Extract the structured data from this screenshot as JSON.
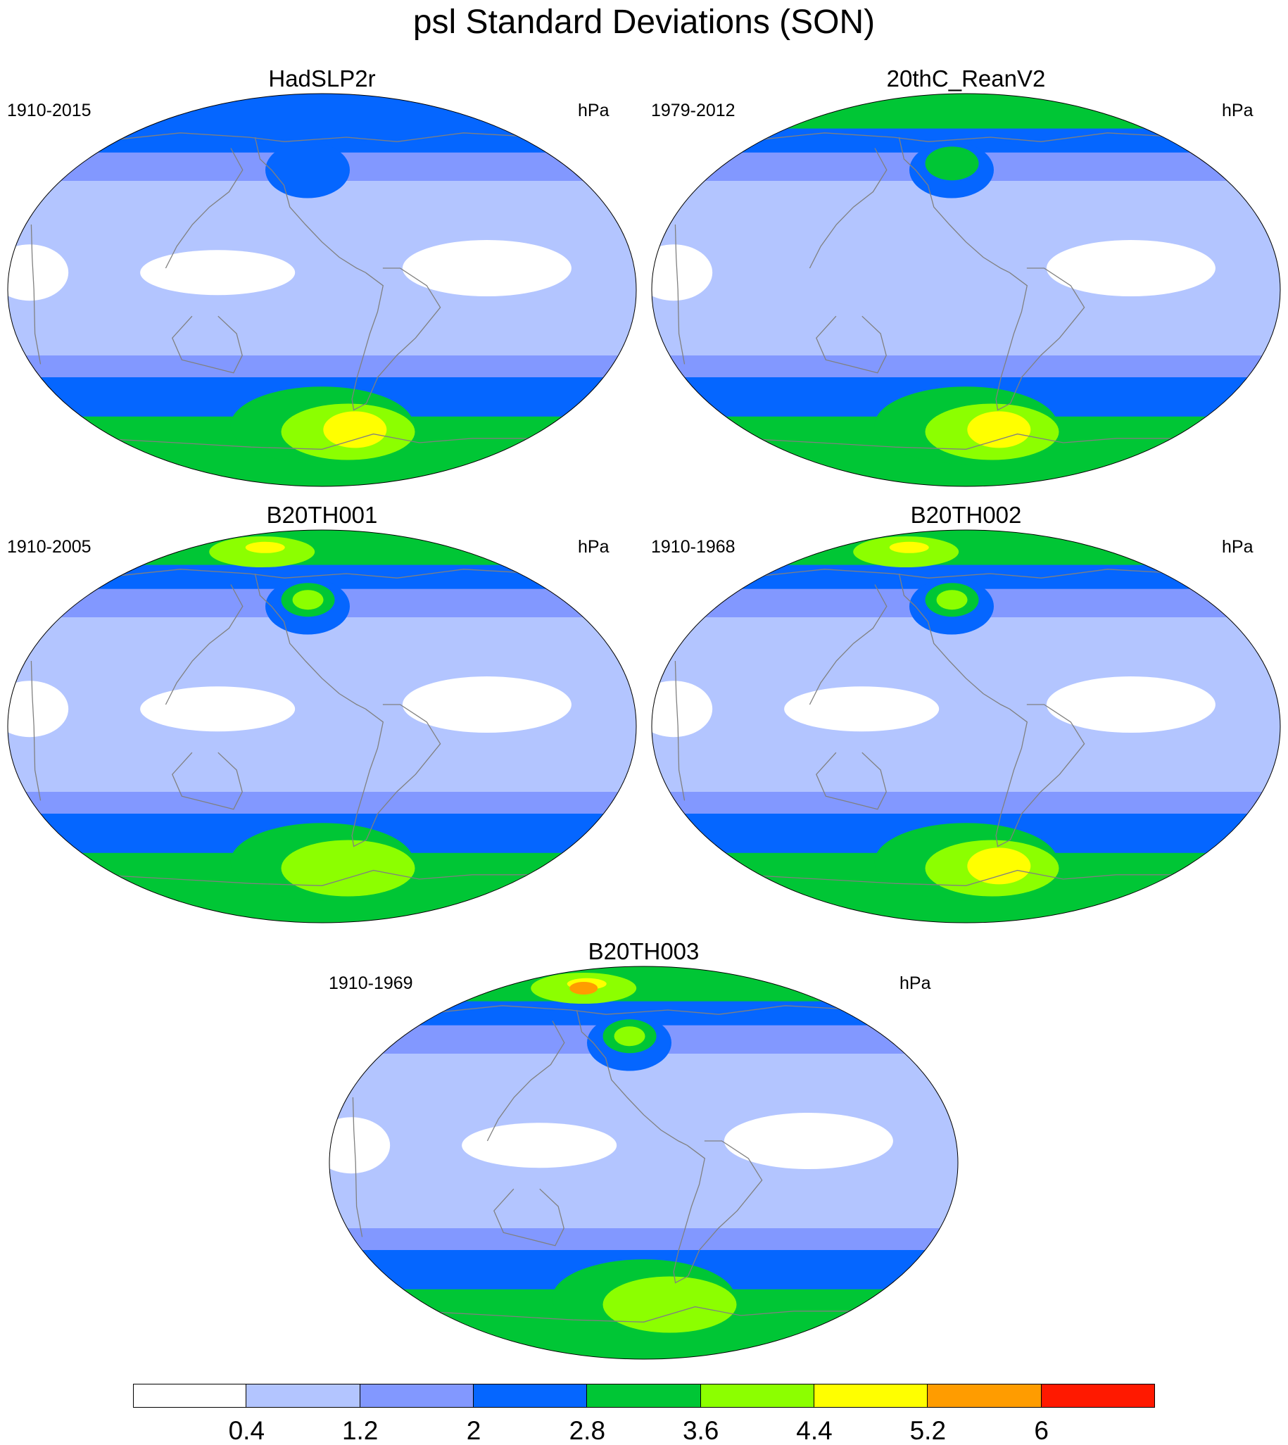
{
  "figure": {
    "title": "psl Standard Deviations (SON)"
  },
  "panels": [
    {
      "id": "p1",
      "title": "HadSLP2r",
      "period": "1910-2015",
      "units": "hPa",
      "pattern": {
        "south_max_level": 6,
        "north_max_level": 3,
        "pacific_white": true,
        "atlantic_white": true
      }
    },
    {
      "id": "p2",
      "title": "20thC_ReanV2",
      "period": "1979-2012",
      "units": "hPa",
      "pattern": {
        "south_max_level": 6,
        "north_max_level": 4,
        "pacific_white": false,
        "atlantic_white": true
      }
    },
    {
      "id": "p3",
      "title": "B20TH001",
      "period": "1910-2005",
      "units": "hPa",
      "pattern": {
        "south_max_level": 5,
        "north_max_level": 6,
        "pacific_white": true,
        "atlantic_white": true
      }
    },
    {
      "id": "p4",
      "title": "B20TH002",
      "period": "1910-1968",
      "units": "hPa",
      "pattern": {
        "south_max_level": 6,
        "north_max_level": 6,
        "pacific_white": true,
        "atlantic_white": true
      }
    },
    {
      "id": "p5",
      "title": "B20TH003",
      "period": "1910-1969",
      "units": "hPa",
      "pattern": {
        "south_max_level": 5,
        "north_max_level": 7,
        "pacific_white": true,
        "atlantic_white": true
      }
    }
  ],
  "colorbar": {
    "colors": [
      "#ffffff",
      "#b3c5ff",
      "#8298ff",
      "#0566ff",
      "#00c635",
      "#8cff00",
      "#ffff00",
      "#ff9c00",
      "#ff1900"
    ],
    "labels": [
      "0.4",
      "1.2",
      "2",
      "2.8",
      "3.6",
      "4.4",
      "5.2",
      "6"
    ]
  },
  "map_style": {
    "coastline_color": "#808080",
    "border_color": "#000000"
  }
}
